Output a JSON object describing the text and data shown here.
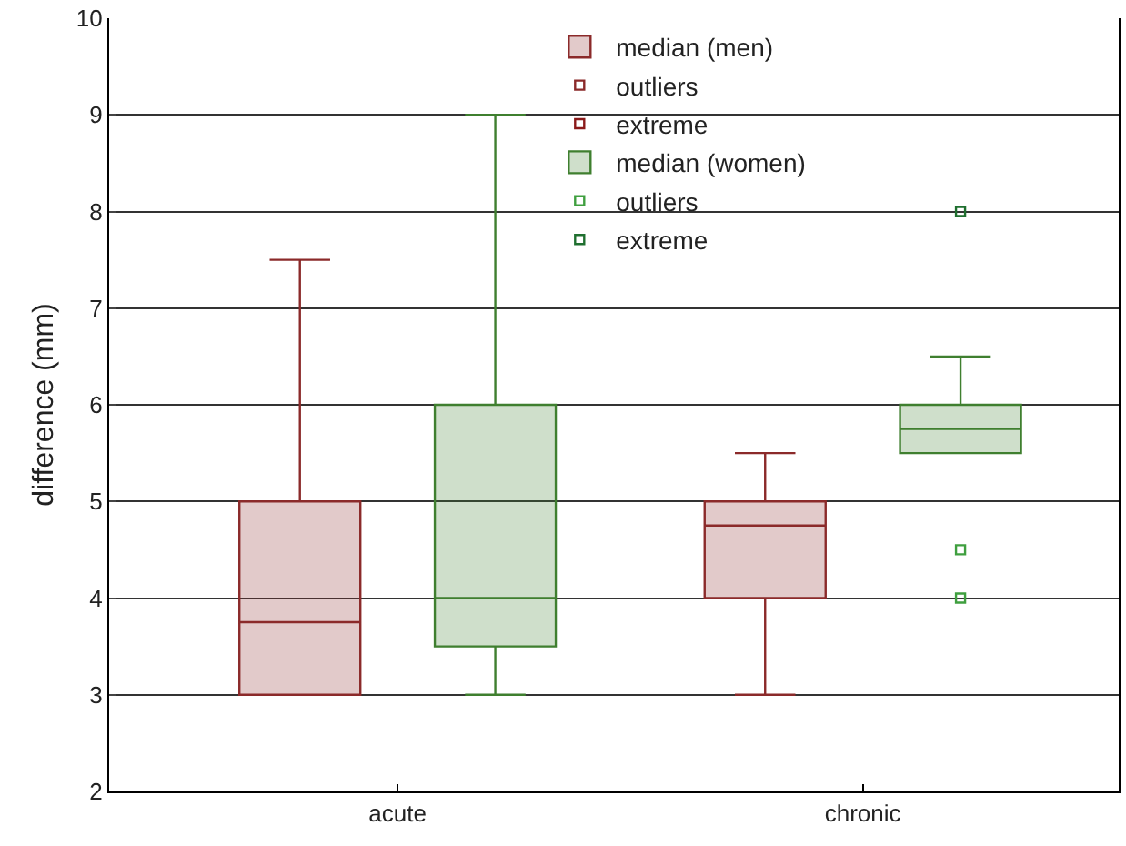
{
  "chart_data": {
    "type": "box",
    "ylabel": "difference (mm)",
    "categories": [
      "acute",
      "chronic"
    ],
    "ylim": [
      2,
      10
    ],
    "yticks": [
      2,
      3,
      4,
      5,
      6,
      7,
      8,
      9,
      10
    ],
    "grid": "y",
    "legend": "top",
    "marker": "square",
    "series": [
      {
        "name": "median (men)",
        "color": "#8b2a2a",
        "boxes": [
          {
            "low": 3,
            "q1": 3,
            "median": 3.75,
            "q3": 5,
            "high": 7.5
          },
          {
            "low": 3,
            "q1": 4,
            "median": 4.75,
            "q3": 5,
            "high": 5.5
          }
        ]
      },
      {
        "name": "outliers",
        "type": "scatter",
        "color": "#8b2a2a",
        "x": [
          "acute"
        ],
        "values": [
          null
        ]
      },
      {
        "name": "extreme",
        "type": "scatter",
        "color": "#8b1a1a",
        "x": [
          "acute"
        ],
        "values": [
          null
        ]
      },
      {
        "name": "median (women)",
        "color": "#3f7f2f",
        "boxes": [
          {
            "low": 3,
            "q1": 3.5,
            "median": 4,
            "q3": 6,
            "high": 9
          },
          {
            "low": 5.5,
            "q1": 5.5,
            "median": 5.75,
            "q3": 6,
            "high": 6.5
          }
        ]
      },
      {
        "name": "outliers",
        "type": "scatter",
        "color": "#3f9f3f",
        "x": [
          "chronic",
          "chronic"
        ],
        "values": [
          4.5,
          4
        ]
      },
      {
        "name": "extreme",
        "type": "scatter",
        "color": "#1f6f2f",
        "x": [
          "chronic"
        ],
        "values": [
          8
        ]
      }
    ]
  }
}
